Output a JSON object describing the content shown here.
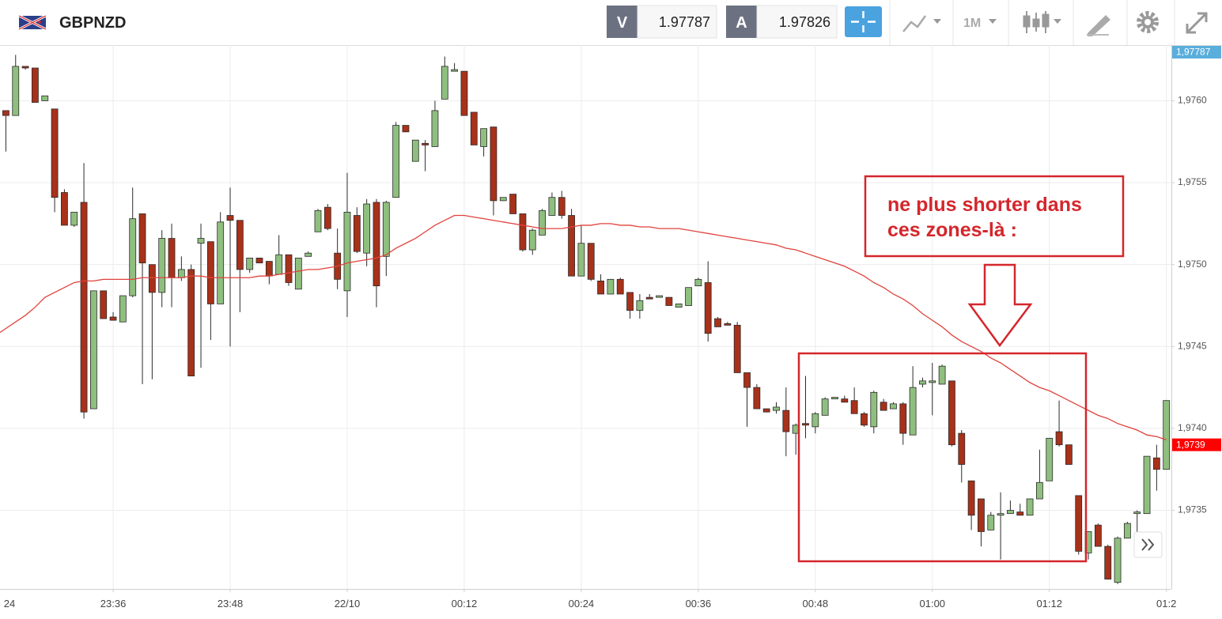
{
  "toolbar": {
    "symbol": "GBPNZD",
    "bid_label": "V",
    "bid": 1.97787,
    "ask_label": "A",
    "ask": 1.97826,
    "interval": "1M"
  },
  "chart_data": {
    "type": "candlestick",
    "categories": [
      "24",
      null,
      null,
      null,
      null,
      null,
      null,
      null,
      null,
      null,
      null,
      null,
      "23:36",
      null,
      null,
      null,
      null,
      null,
      null,
      null,
      null,
      null,
      null,
      null,
      "23:48",
      null,
      null,
      null,
      null,
      null,
      null,
      null,
      null,
      null,
      null,
      null,
      "22/10",
      null,
      null,
      null,
      null,
      null,
      null,
      null,
      null,
      null,
      null,
      null,
      "00:12",
      null,
      null,
      null,
      null,
      null,
      null,
      null,
      null,
      null,
      null,
      null,
      "00:24",
      null,
      null,
      null,
      null,
      null,
      null,
      null,
      null,
      null,
      null,
      null,
      "00:36",
      null,
      null,
      null,
      null,
      null,
      null,
      null,
      null,
      null,
      null,
      null,
      "00:48",
      null,
      null,
      null,
      null,
      null,
      null,
      null,
      null,
      null,
      null,
      null,
      "01:00",
      null,
      null,
      null,
      null,
      null,
      null,
      null,
      null,
      null,
      null,
      null,
      "01:12",
      null,
      null,
      null,
      null,
      null,
      null,
      null,
      null,
      null,
      null,
      null,
      "01:2"
    ],
    "open": [
      null,
      1.97594,
      1.97591,
      1.97621,
      1.9762,
      1.976,
      1.97595,
      1.97544,
      1.97524,
      1.97538,
      1.97412,
      1.97484,
      1.97468,
      1.97465,
      1.97481,
      1.97531,
      1.975,
      1.97483,
      1.97516,
      1.97492,
      1.97497,
      1.97513,
      1.97514,
      1.97476,
      1.9753,
      1.97527,
      1.97497,
      1.97504,
      1.97502,
      1.97494,
      1.97506,
      1.97485,
      1.97505,
      1.9752,
      1.97535,
      1.97507,
      1.97484,
      1.9753,
      1.97507,
      1.97538,
      1.97505,
      1.97541,
      1.97585,
      1.97563,
      1.97574,
      1.97572,
      1.97601,
      1.97618,
      1.97618,
      1.97593,
      1.97572,
      1.97584,
      1.97539,
      1.97543,
      1.97531,
      1.97509,
      1.97518,
      1.9753,
      1.97541,
      1.9753,
      1.97493,
      1.97513,
      1.9749,
      1.97482,
      1.97491,
      1.97483,
      1.97472,
      1.9748,
      1.9748,
      1.9748,
      1.97474,
      1.97475,
      1.97487,
      1.97489,
      1.97467,
      1.97464,
      1.97463,
      1.97434,
      1.97425,
      1.97412,
      1.97411,
      1.97411,
      1.97397,
      1.97403,
      1.97401,
      1.97408,
      1.97418,
      1.97418,
      1.97417,
      1.97409,
      1.97401,
      1.97416,
      1.97412,
      1.97415,
      1.97396,
      1.97427,
      1.97428,
      1.97427,
      1.97429,
      1.97397,
      1.97368,
      1.97357,
      1.97338,
      1.97347,
      1.97348,
      1.97349,
      1.97347,
      1.97357,
      1.97368,
      1.97398,
      1.9739,
      1.97359,
      1.97324,
      1.97341,
      1.97328,
      1.97306,
      1.97333,
      1.97348,
      1.97348,
      1.97382,
      1.97375
    ],
    "high": [
      null,
      1.97594,
      1.97628,
      1.97621,
      1.9762,
      1.97603,
      1.97595,
      1.97546,
      1.97532,
      1.97562,
      1.97484,
      1.97484,
      1.97471,
      1.97481,
      1.97547,
      1.97531,
      1.975,
      1.97521,
      1.97525,
      1.97505,
      1.975,
      1.97525,
      1.97514,
      1.97532,
      1.97547,
      1.97527,
      1.97504,
      1.97504,
      1.97502,
      1.97518,
      1.97506,
      1.97504,
      1.97508,
      1.97534,
      1.97537,
      1.97522,
      1.97556,
      1.97535,
      1.9754,
      1.9754,
      1.97539,
      1.97587,
      1.97585,
      1.97576,
      1.97576,
      1.976,
      1.97627,
      1.97623,
      1.97618,
      1.97593,
      1.97583,
      1.97584,
      1.97541,
      1.97543,
      1.97531,
      1.97522,
      1.97534,
      1.97544,
      1.97545,
      1.97534,
      1.97524,
      1.97513,
      1.97494,
      1.97491,
      1.97492,
      1.97483,
      1.97482,
      1.97482,
      1.97481,
      1.9748,
      1.97476,
      1.97486,
      1.97492,
      1.97502,
      1.97468,
      1.97465,
      1.97465,
      1.97434,
      1.97427,
      1.97412,
      1.97416,
      1.97425,
      1.97403,
      1.97432,
      1.9741,
      1.97419,
      1.97419,
      1.9742,
      1.97425,
      1.9741,
      1.97423,
      1.97418,
      1.97416,
      1.97416,
      1.97438,
      1.97431,
      1.9744,
      1.97439,
      1.97429,
      1.97399,
      1.97368,
      1.97357,
      1.97349,
      1.97361,
      1.97356,
      1.97354,
      1.97357,
      1.97387,
      1.97394,
      1.97417,
      1.9739,
      1.97359,
      1.97337,
      1.97342,
      1.97329,
      1.97334,
      1.97343,
      1.9735,
      1.97383,
      1.9739,
      1.97417
    ],
    "low": [
      null,
      1.97569,
      1.97591,
      1.97619,
      1.97599,
      1.976,
      1.97532,
      1.97524,
      1.97523,
      1.97406,
      1.97412,
      1.97467,
      1.97466,
      1.97465,
      1.9748,
      1.97427,
      1.9743,
      1.97474,
      1.97474,
      1.9749,
      1.97432,
      1.97437,
      1.97454,
      1.97476,
      1.9745,
      1.97471,
      1.97495,
      1.97501,
      1.97488,
      1.97494,
      1.97487,
      1.97485,
      1.97505,
      1.9752,
      1.97521,
      1.97485,
      1.97468,
      1.97507,
      1.97499,
      1.97474,
      1.97493,
      1.97541,
      1.97581,
      1.97563,
      1.97557,
      1.97572,
      1.97601,
      1.97618,
      1.97591,
      1.97573,
      1.97566,
      1.9753,
      1.97539,
      1.97531,
      1.97508,
      1.97506,
      1.97518,
      1.9753,
      1.97528,
      1.97493,
      1.97493,
      1.9749,
      1.97482,
      1.97482,
      1.97482,
      1.97467,
      1.97467,
      1.97479,
      1.9748,
      1.97475,
      1.97474,
      1.97475,
      1.97487,
      1.97453,
      1.97462,
      1.97463,
      1.97434,
      1.97401,
      1.97412,
      1.9741,
      1.97409,
      1.97383,
      1.97384,
      1.97394,
      1.97397,
      1.97408,
      1.97418,
      1.97416,
      1.97409,
      1.97401,
      1.97397,
      1.97411,
      1.97412,
      1.9739,
      1.97396,
      1.97425,
      1.97408,
      1.97427,
      1.97389,
      1.97367,
      1.97338,
      1.97328,
      1.97338,
      1.9732,
      1.97348,
      1.97347,
      1.97347,
      1.97357,
      1.97368,
      1.97389,
      1.97378,
      1.97323,
      1.9732,
      1.97328,
      1.97308,
      1.97305,
      1.97333,
      1.97334,
      1.97348,
      1.97362,
      1.97375
    ],
    "close": [
      null,
      1.97591,
      1.97621,
      1.9762,
      1.97599,
      1.97603,
      1.97541,
      1.97524,
      1.97532,
      1.9741,
      1.97484,
      1.97467,
      1.97466,
      1.97481,
      1.97528,
      1.97501,
      1.97483,
      1.97516,
      1.97492,
      1.97497,
      1.97432,
      1.97516,
      1.97476,
      1.97526,
      1.97527,
      1.97497,
      1.97504,
      1.97501,
      1.97493,
      1.97506,
      1.97489,
      1.97504,
      1.97507,
      1.97533,
      1.97522,
      1.97491,
      1.97532,
      1.97508,
      1.97537,
      1.97487,
      1.97538,
      1.97585,
      1.97581,
      1.97576,
      1.97573,
      1.97594,
      1.97621,
      1.97619,
      1.97591,
      1.97573,
      1.97583,
      1.97539,
      1.97541,
      1.97531,
      1.97509,
      1.97521,
      1.97533,
      1.97541,
      1.9753,
      1.97493,
      1.97513,
      1.97491,
      1.97482,
      1.97491,
      1.97482,
      1.97472,
      1.97478,
      1.97479,
      1.97481,
      1.97475,
      1.97476,
      1.97486,
      1.97491,
      1.97458,
      1.97462,
      1.97463,
      1.97434,
      1.97425,
      1.97412,
      1.9741,
      1.97413,
      1.97398,
      1.97402,
      1.97402,
      1.97409,
      1.97418,
      1.97419,
      1.97416,
      1.97409,
      1.97402,
      1.97422,
      1.97411,
      1.97415,
      1.97397,
      1.97425,
      1.97429,
      1.97429,
      1.97438,
      1.9739,
      1.97378,
      1.97347,
      1.97337,
      1.97347,
      1.97348,
      1.9735,
      1.97347,
      1.97357,
      1.97367,
      1.97394,
      1.9739,
      1.97378,
      1.97325,
      1.97337,
      1.97328,
      1.97308,
      1.97333,
      1.97342,
      1.97349,
      1.97383,
      1.97375,
      1.97417
    ],
    "up_color": "#8fbf7f",
    "down_color": "#a8311a",
    "series": [
      {
        "color": "#e0423c",
        "values": [
          1.97457,
          1.97461,
          1.97465,
          1.97469,
          1.97474,
          1.9748,
          1.97483,
          1.97486,
          1.97489,
          1.9749,
          1.9749,
          1.97491,
          1.97491,
          1.97491,
          1.97491,
          1.97492,
          1.97492,
          1.97492,
          1.97492,
          1.97492,
          1.97493,
          1.97493,
          1.97492,
          1.97492,
          1.97492,
          1.97492,
          1.97492,
          1.97493,
          1.97493,
          1.97494,
          1.97495,
          1.97496,
          1.97497,
          1.97497,
          1.97498,
          1.97499,
          1.97501,
          1.97502,
          1.97503,
          1.97504,
          1.97506,
          1.9751,
          1.97513,
          1.97516,
          1.9752,
          1.97524,
          1.97527,
          1.9753,
          1.9753,
          1.97529,
          1.97528,
          1.97527,
          1.97526,
          1.97525,
          1.97524,
          1.97523,
          1.97522,
          1.97522,
          1.97522,
          1.97523,
          1.97524,
          1.97524,
          1.97525,
          1.97525,
          1.97524,
          1.97524,
          1.97523,
          1.97523,
          1.97522,
          1.97522,
          1.97522,
          1.97521,
          1.9752,
          1.97519,
          1.97518,
          1.97517,
          1.97516,
          1.97515,
          1.97514,
          1.97513,
          1.97512,
          1.9751,
          1.97509,
          1.97507,
          1.97505,
          1.97503,
          1.97501,
          1.97499,
          1.97496,
          1.97493,
          1.97489,
          1.97486,
          1.97482,
          1.97479,
          1.97475,
          1.9747,
          1.97466,
          1.97462,
          1.97457,
          1.97453,
          1.9745,
          1.97447,
          1.97443,
          1.9744,
          1.97436,
          1.97432,
          1.97428,
          1.97425,
          1.97423,
          1.9742,
          1.97417,
          1.97414,
          1.97411,
          1.97408,
          1.97406,
          1.97403,
          1.97401,
          1.97399,
          1.97396,
          1.97395,
          1.97393
        ]
      }
    ],
    "ylim": [
      1.97302,
      1.97634
    ],
    "yticks": [
      {
        "value": 1.9735,
        "label": "1,9735"
      },
      {
        "value": 1.974,
        "label": "1,9740"
      },
      {
        "value": 1.9745,
        "label": "1,9745"
      },
      {
        "value": 1.975,
        "label": "1,9750"
      },
      {
        "value": 1.9755,
        "label": "1,9755"
      },
      {
        "value": 1.976,
        "label": "1,9760"
      }
    ],
    "grid": true,
    "price_tags": [
      {
        "value": 1.97787,
        "label": "1,97787",
        "color": "#5aaedc"
      },
      {
        "value": 1.9739,
        "label": "1,9739",
        "color": "#ff0000"
      }
    ],
    "annotation": [
      "ne plus shorter dans",
      "ces zones-là :"
    ]
  }
}
